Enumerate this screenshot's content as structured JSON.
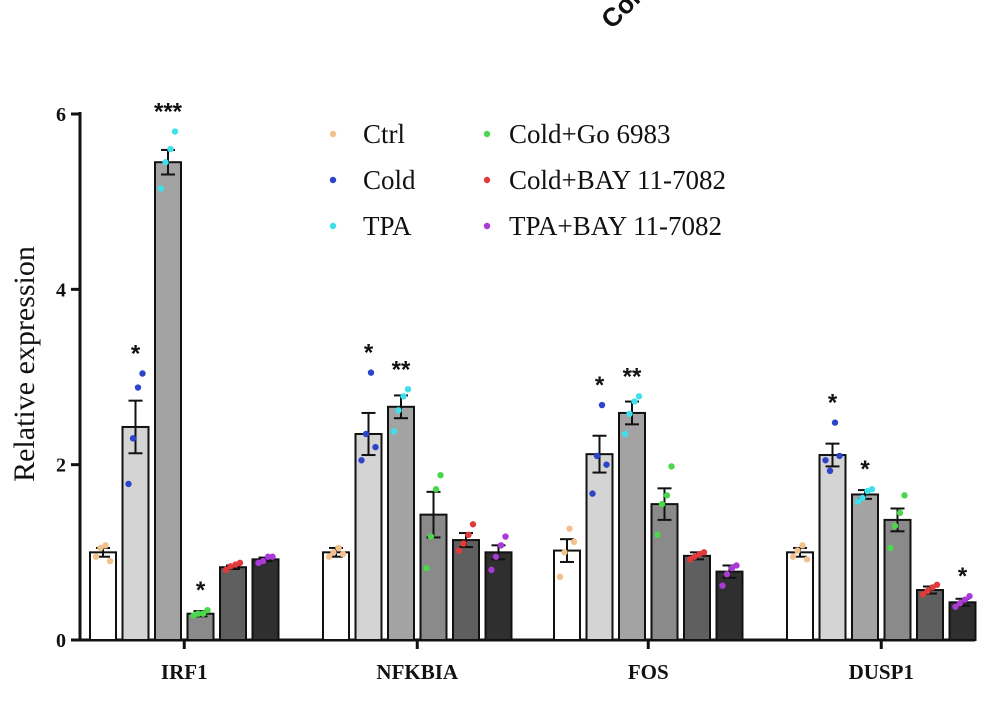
{
  "corner_label": "Cold",
  "chart_data": {
    "type": "bar",
    "ylabel": "Relative expression",
    "xlabel": "",
    "ylim": [
      0,
      6
    ],
    "yticks": [
      0,
      2,
      4,
      6
    ],
    "grid": false,
    "legend_position": "top-center",
    "categories": [
      "IRF1",
      "NFKBIA",
      "FOS",
      "DUSP1"
    ],
    "series": [
      {
        "name": "Ctrl",
        "dot_color": "#f2c28e",
        "bar_color": "#ffffff",
        "values": [
          1.0,
          1.0,
          1.02,
          1.0
        ],
        "errors": [
          0.05,
          0.05,
          0.13,
          0.05
        ],
        "points": [
          [
            0.95,
            1.05,
            1.08,
            0.9
          ],
          [
            0.95,
            1.0,
            1.05,
            0.98
          ],
          [
            0.72,
            1.0,
            1.27,
            1.12
          ],
          [
            0.95,
            1.02,
            1.08,
            0.92
          ]
        ],
        "significance": [
          "",
          "",
          "",
          ""
        ]
      },
      {
        "name": "Cold",
        "dot_color": "#2b44c9",
        "bar_color": "#d4d4d4",
        "values": [
          2.43,
          2.35,
          2.12,
          2.11
        ],
        "errors": [
          0.3,
          0.24,
          0.21,
          0.13
        ],
        "points": [
          [
            1.78,
            2.3,
            2.88,
            3.04
          ],
          [
            2.05,
            2.35,
            3.05,
            2.2
          ],
          [
            1.67,
            2.1,
            2.68,
            2.0
          ],
          [
            2.05,
            1.93,
            2.48,
            2.1
          ]
        ],
        "significance": [
          "*",
          "*",
          "*",
          "*"
        ]
      },
      {
        "name": "TPA",
        "dot_color": "#3fe0ec",
        "bar_color": "#a3a3a3",
        "values": [
          5.45,
          2.66,
          2.59,
          1.66
        ],
        "errors": [
          0.14,
          0.13,
          0.13,
          0.05
        ],
        "points": [
          [
            5.15,
            5.45,
            5.6,
            5.8
          ],
          [
            2.38,
            2.62,
            2.78,
            2.86
          ],
          [
            2.35,
            2.58,
            2.72,
            2.78
          ],
          [
            1.58,
            1.62,
            1.7,
            1.72
          ]
        ],
        "significance": [
          "***",
          "**",
          "**",
          "*"
        ]
      },
      {
        "name": "Cold+Go 6983",
        "dot_color": "#4cd64c",
        "bar_color": "#8a8a8a",
        "values": [
          0.3,
          1.43,
          1.55,
          1.37
        ],
        "errors": [
          0.03,
          0.26,
          0.18,
          0.13
        ],
        "points": [
          [
            0.28,
            0.3,
            0.3,
            0.34
          ],
          [
            0.82,
            1.18,
            1.72,
            1.88
          ],
          [
            1.2,
            1.55,
            1.65,
            1.98
          ],
          [
            1.05,
            1.3,
            1.45,
            1.65
          ]
        ],
        "significance": [
          "*",
          "",
          "",
          ""
        ]
      },
      {
        "name": "Cold+BAY 11-7082",
        "dot_color": "#e03a3a",
        "bar_color": "#5f5f5f",
        "values": [
          0.83,
          1.14,
          0.96,
          0.57
        ],
        "errors": [
          0.02,
          0.08,
          0.04,
          0.04
        ],
        "points": [
          [
            0.8,
            0.84,
            0.86,
            0.88
          ],
          [
            1.02,
            1.1,
            1.2,
            1.32
          ],
          [
            0.92,
            0.95,
            0.98,
            1.0
          ],
          [
            0.52,
            0.56,
            0.6,
            0.63
          ]
        ],
        "significance": [
          "",
          "",
          "",
          ""
        ]
      },
      {
        "name": "TPA+BAY 11-7082",
        "dot_color": "#a93ad6",
        "bar_color": "#2f2f2f",
        "values": [
          0.92,
          1.0,
          0.78,
          0.43
        ],
        "errors": [
          0.02,
          0.08,
          0.07,
          0.04
        ],
        "points": [
          [
            0.88,
            0.9,
            0.95,
            0.95
          ],
          [
            0.8,
            0.95,
            1.08,
            1.18
          ],
          [
            0.62,
            0.75,
            0.82,
            0.85
          ],
          [
            0.38,
            0.42,
            0.46,
            0.5
          ]
        ],
        "significance": [
          "",
          "",
          "",
          "*"
        ]
      }
    ]
  }
}
